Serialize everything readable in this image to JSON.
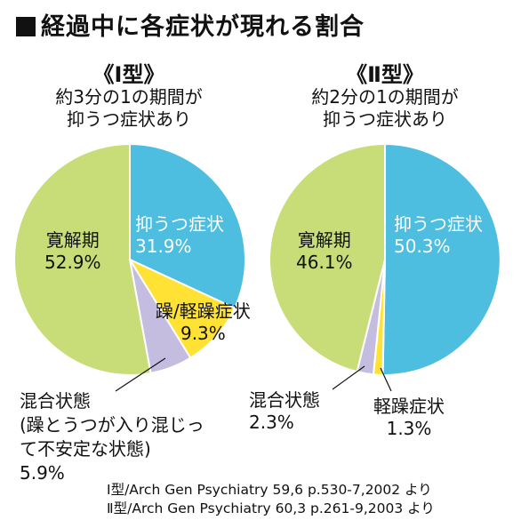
{
  "title": "経過中に各症状が現れる割合",
  "colors": {
    "depressive": "#4dbde0",
    "manic": "#ffe233",
    "hypomanic": "#ffe233",
    "mixed": "#c5bddf",
    "remission": "#c8dc78",
    "edge": "#ffffff",
    "text": "#111111"
  },
  "chart_data": [
    {
      "type": "pie",
      "title": "《Ⅰ型》",
      "subtitle": [
        "約3分の1の期間が",
        "抑うつ症状あり"
      ],
      "slices": [
        {
          "key": "depressive",
          "name": "抑うつ症状",
          "value": 31.9,
          "label": "31.9%"
        },
        {
          "key": "manic",
          "name": "躁/軽躁症状",
          "value": 9.3,
          "label": "9.3%"
        },
        {
          "key": "mixed",
          "name": "混合状態",
          "name_lines": [
            "混合状態",
            "(躁とうつが入り混じっ",
            "て不安定な状態)"
          ],
          "value": 5.9,
          "label": "5.9%"
        },
        {
          "key": "remission",
          "name": "寛解期",
          "value": 52.9,
          "label": "52.9%"
        }
      ]
    },
    {
      "type": "pie",
      "title": "《Ⅱ型》",
      "subtitle": [
        "約2分の1の期間が",
        "抑うつ症状あり"
      ],
      "slices": [
        {
          "key": "depressive",
          "name": "抑うつ症状",
          "value": 50.3,
          "label": "50.3%"
        },
        {
          "key": "hypomanic",
          "name": "軽躁症状",
          "value": 1.3,
          "label": "1.3%"
        },
        {
          "key": "mixed",
          "name": "混合状態",
          "value": 2.3,
          "label": "2.3%"
        },
        {
          "key": "remission",
          "name": "寛解期",
          "value": 46.1,
          "label": "46.1%"
        }
      ]
    }
  ],
  "sources": [
    "Ⅰ型/Arch Gen Psychiatry 59,6 p.530-7,2002 より",
    "Ⅱ型/Arch Gen Psychiatry 60,3 p.261-9,2003 より"
  ]
}
